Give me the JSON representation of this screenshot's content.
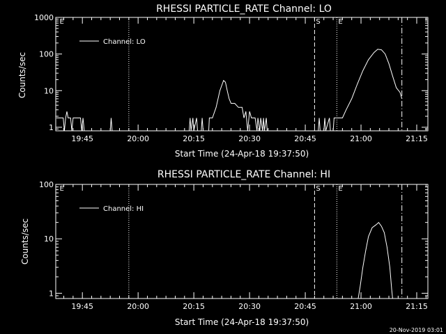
{
  "footer": {
    "timestamp": "20-Nov-2019 03:01"
  },
  "chart_data": [
    {
      "type": "line",
      "title": "RHESSI PARTICLE_RATE Channel: LO",
      "xlabel": "Start Time (24-Apr-18 19:37:50)",
      "ylabel": "Counts/sec",
      "xscale": "time",
      "yscale": "log",
      "xlim": [
        "19:37:50",
        "21:18:00"
      ],
      "ylim": [
        0.8,
        1000
      ],
      "x_ticks": [
        "19:45",
        "20:00",
        "20:15",
        "20:30",
        "20:45",
        "21:00",
        "21:15"
      ],
      "y_ticks": [
        "1",
        "10",
        "100",
        "1000"
      ],
      "legend": {
        "position": "top-left",
        "entries": [
          "Channel: LO"
        ]
      },
      "markers": [
        {
          "label": "E",
          "time": "19:38:30",
          "style": "none"
        },
        {
          "label": "",
          "time": "19:57:30",
          "style": "dotted"
        },
        {
          "label": "S",
          "time": "20:47:30",
          "style": "dashed"
        },
        {
          "label": "E",
          "time": "20:53:30",
          "style": "dotted"
        },
        {
          "label": "",
          "time": "21:11:00",
          "style": "dashdot"
        }
      ],
      "series": [
        {
          "name": "Channel: LO",
          "points": [
            [
              "19:38:00",
              1.8
            ],
            [
              "19:39:50",
              1.8
            ],
            [
              "19:40:10",
              0.8
            ],
            [
              "19:40:30",
              1.8
            ],
            [
              "19:40:50",
              2.7
            ],
            [
              "19:41:10",
              1.8
            ],
            [
              "19:41:50",
              1.8
            ],
            [
              "19:42:10",
              0.8
            ],
            [
              "19:42:30",
              1.8
            ],
            [
              "19:44:30",
              1.8
            ],
            [
              "19:44:50",
              0.8
            ],
            [
              "19:45:10",
              1.8
            ],
            [
              "19:45:30",
              0.8
            ],
            [
              "19:52:30",
              0.8
            ],
            [
              "19:52:45",
              1.8
            ],
            [
              "19:53:00",
              0.8
            ],
            [
              "20:13:45",
              0.8
            ],
            [
              "20:14:00",
              1.8
            ],
            [
              "20:14:15",
              0.8
            ],
            [
              "20:14:45",
              1.8
            ],
            [
              "20:15:00",
              0.8
            ],
            [
              "20:15:45",
              1.8
            ],
            [
              "20:16:00",
              0.8
            ],
            [
              "20:17:00",
              0.8
            ],
            [
              "20:17:15",
              1.8
            ],
            [
              "20:17:30",
              0.8
            ],
            [
              "20:19:00",
              0.8
            ],
            [
              "20:19:10",
              1.8
            ],
            [
              "20:20:00",
              1.8
            ],
            [
              "20:21:00",
              3.5
            ],
            [
              "20:22:00",
              10
            ],
            [
              "20:23:00",
              19
            ],
            [
              "20:23:30",
              17
            ],
            [
              "20:24:00",
              10
            ],
            [
              "20:24:30",
              6
            ],
            [
              "20:25:00",
              4.5
            ],
            [
              "20:26:00",
              4.5
            ],
            [
              "20:27:00",
              3.5
            ],
            [
              "20:28:00",
              3.5
            ],
            [
              "20:28:30",
              1.8
            ],
            [
              "20:29:00",
              2.7
            ],
            [
              "20:29:30",
              0.8
            ],
            [
              "20:30:00",
              2.7
            ],
            [
              "20:30:30",
              1.8
            ],
            [
              "20:31:00",
              1.8
            ],
            [
              "20:31:30",
              1.8
            ],
            [
              "20:32:00",
              0.8
            ],
            [
              "20:32:15",
              1.8
            ],
            [
              "20:32:45",
              0.8
            ],
            [
              "20:33:00",
              1.8
            ],
            [
              "20:33:30",
              0.8
            ],
            [
              "20:33:45",
              1.8
            ],
            [
              "20:34:00",
              0.8
            ],
            [
              "20:34:30",
              1.8
            ],
            [
              "20:34:45",
              0.8
            ],
            [
              "20:48:30",
              0.8
            ],
            [
              "20:48:45",
              1.8
            ],
            [
              "20:49:00",
              0.8
            ],
            [
              "20:50:00",
              0.8
            ],
            [
              "20:50:15",
              1.8
            ],
            [
              "20:50:30",
              0.8
            ],
            [
              "20:51:30",
              1.8
            ],
            [
              "20:51:45",
              0.8
            ],
            [
              "20:52:30",
              0.8
            ],
            [
              "20:52:45",
              1.8
            ],
            [
              "20:55:00",
              1.8
            ],
            [
              "20:56:00",
              3
            ],
            [
              "20:57:30",
              6
            ],
            [
              "20:59:00",
              15
            ],
            [
              "21:00:30",
              35
            ],
            [
              "21:02:00",
              70
            ],
            [
              "21:03:30",
              110
            ],
            [
              "21:04:30",
              135
            ],
            [
              "21:05:30",
              130
            ],
            [
              "21:06:30",
              100
            ],
            [
              "21:07:30",
              55
            ],
            [
              "21:08:30",
              25
            ],
            [
              "21:09:30",
              12
            ],
            [
              "21:10:30",
              9
            ],
            [
              "21:11:00",
              6
            ]
          ]
        }
      ]
    },
    {
      "type": "line",
      "title": "RHESSI PARTICLE_RATE Channel: HI",
      "xlabel": "Start Time (24-Apr-18 19:37:50)",
      "ylabel": "Counts/sec",
      "xscale": "time",
      "yscale": "log",
      "xlim": [
        "19:37:50",
        "21:18:00"
      ],
      "ylim": [
        0.8,
        100
      ],
      "x_ticks": [
        "19:45",
        "20:00",
        "20:15",
        "20:30",
        "20:45",
        "21:00",
        "21:15"
      ],
      "y_ticks": [
        "1",
        "10",
        "100"
      ],
      "legend": {
        "position": "top-left",
        "entries": [
          "Channel: HI"
        ]
      },
      "markers": [
        {
          "label": "E",
          "time": "19:38:30",
          "style": "none"
        },
        {
          "label": "",
          "time": "19:57:30",
          "style": "dotted"
        },
        {
          "label": "S",
          "time": "20:47:30",
          "style": "dashed"
        },
        {
          "label": "E",
          "time": "20:53:30",
          "style": "dotted"
        },
        {
          "label": "",
          "time": "21:11:00",
          "style": "dashdot"
        }
      ],
      "series": [
        {
          "name": "Channel: HI",
          "points": [
            [
              "20:59:15",
              0.8
            ],
            [
              "20:59:45",
              1.3
            ],
            [
              "21:00:30",
              3
            ],
            [
              "21:01:15",
              6
            ],
            [
              "21:02:00",
              11
            ],
            [
              "21:03:00",
              16
            ],
            [
              "21:04:00",
              18
            ],
            [
              "21:04:45",
              20
            ],
            [
              "21:05:30",
              17
            ],
            [
              "21:06:15",
              13
            ],
            [
              "21:07:00",
              7
            ],
            [
              "21:07:45",
              3
            ],
            [
              "21:08:15",
              1.2
            ],
            [
              "21:08:30",
              0.8
            ]
          ]
        }
      ]
    }
  ]
}
